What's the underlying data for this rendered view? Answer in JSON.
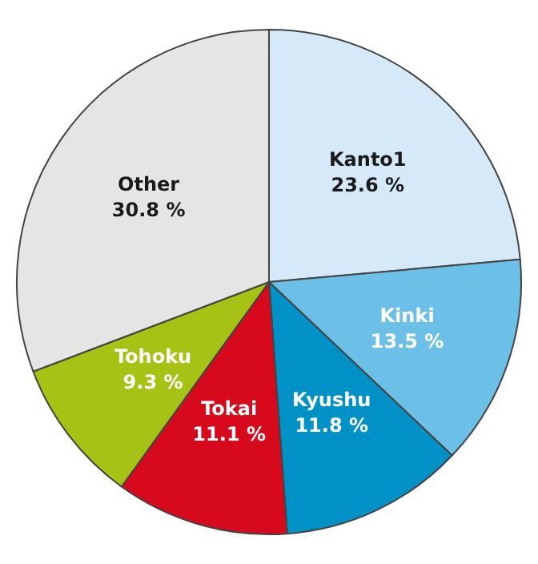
{
  "chart_data": {
    "type": "pie",
    "categories": [
      "Kanto1",
      "Kinki",
      "Kyushu",
      "Tokai",
      "Tohoku",
      "Other"
    ],
    "values": [
      23.6,
      13.5,
      11.8,
      11.1,
      9.3,
      30.8
    ],
    "value_labels": [
      "23.6 %",
      "13.5 %",
      "11.8 %",
      "11.1 %",
      "9.3 %",
      "30.8 %"
    ],
    "colors": [
      "#d5e9f8",
      "#6cbfe6",
      "#0092c6",
      "#d60a1c",
      "#a5c215",
      "#e5e5e5"
    ],
    "legend": false
  }
}
